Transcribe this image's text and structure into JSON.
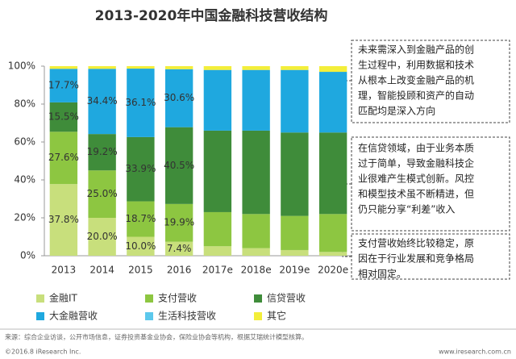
{
  "chart_data": {
    "type": "stacked-bar",
    "title": "2013-2020年中国金融科技营收结构",
    "categories": [
      "2013",
      "2014",
      "2015",
      "2016",
      "2017e",
      "2018e",
      "2019e",
      "2020e"
    ],
    "series": [
      {
        "name": "金融IT",
        "color": "#c8df7c",
        "values": [
          37.8,
          20.0,
          10.0,
          7.4,
          5,
          4,
          3,
          2
        ],
        "value_labels": [
          "37.8%",
          "20.0%",
          "10.0%",
          "7.4%",
          null,
          null,
          null,
          null
        ]
      },
      {
        "name": "支付营收",
        "color": "#8dc641",
        "values": [
          27.6,
          25.0,
          18.7,
          19.9,
          18,
          18,
          18,
          20
        ],
        "value_labels": [
          "27.6%",
          "25.0%",
          "18.7%",
          "19.9%",
          null,
          null,
          null,
          null
        ]
      },
      {
        "name": "信贷营收",
        "color": "#3f8c3a",
        "values": [
          15.5,
          19.2,
          33.9,
          40.5,
          43,
          44,
          44,
          43
        ],
        "value_labels": [
          "15.5%",
          "19.2%",
          "33.9%",
          "40.5%",
          null,
          null,
          null,
          null
        ]
      },
      {
        "name": "大金融营收",
        "color": "#1fa8df",
        "values": [
          17.7,
          34.4,
          36.1,
          30.6,
          32,
          32,
          33,
          32
        ],
        "value_labels": [
          "17.7%",
          "34.4%",
          "36.1%",
          "30.6%",
          null,
          null,
          null,
          null
        ]
      },
      {
        "name": "生活科技营收",
        "color": "#5cc8ec",
        "values": [
          0,
          0,
          0,
          0,
          0,
          0,
          0,
          0
        ]
      },
      {
        "name": "其它",
        "color": "#f3ee3a",
        "values": [
          1.4,
          1.4,
          1.3,
          1.6,
          2,
          2,
          2,
          3
        ]
      }
    ],
    "ylim": [
      0,
      100
    ],
    "yticks": [
      {
        "value": 0,
        "label": "0%"
      },
      {
        "value": 20,
        "label": "20%"
      },
      {
        "value": 40,
        "label": "40%"
      },
      {
        "value": 60,
        "label": "60%"
      },
      {
        "value": 80,
        "label": "80%"
      },
      {
        "value": 100,
        "label": "100%"
      }
    ],
    "annotations": [
      [
        "未来需深入到金融产品的创",
        "生过程中，利用数据和技术",
        "从根本上改变金融产品的机",
        "理，智能投顾和资产的自动",
        "匹配均是深入方向"
      ],
      [
        "在信贷领域，由于业务本质",
        "过于简单，导致金融科技企",
        "业很难产生模式创新。风控",
        "和模型技术虽不断精进，但",
        "仍只能分享“利差”收入"
      ],
      [
        "支付营收始终比较稳定，原",
        "因在于行业发展和竞争格局",
        "相对固定。"
      ]
    ],
    "source": "来源：综合企业访谈，公开市场信息，证券投资基金业协会，保险业协会等机构，根据艾瑞统计模型核算。",
    "copyright": "©2016.8 iResearch Inc.",
    "website": "www.iresearch.com.cn"
  }
}
